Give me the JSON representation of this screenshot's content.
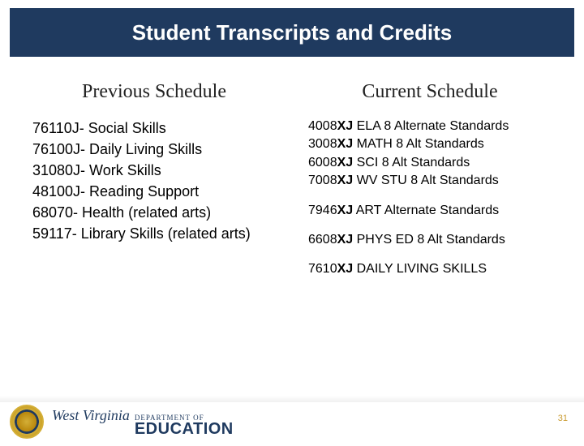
{
  "title": "Student Transcripts and Credits",
  "columns": {
    "previous": {
      "heading": "Previous Schedule",
      "items": [
        "76110J- Social Skills",
        "76100J- Daily Living Skills",
        "31080J- Work Skills",
        "48100J- Reading Support",
        "68070- Health (related arts)",
        "59117- Library Skills (related arts)"
      ]
    },
    "current": {
      "heading": "Current Schedule",
      "items": [
        {
          "code": "4008XJ",
          "label": "ELA 8 Alternate Standards"
        },
        {
          "code": "3008XJ",
          "label": "MATH 8 Alt Standards"
        },
        {
          "code": "6008XJ",
          "label": "SCI 8 Alt Standards"
        },
        {
          "code": "7008XJ",
          "label": "WV STU 8 Alt Standards"
        },
        {
          "code": "7946XJ",
          "label": "ART Alternate Standards",
          "gap": true
        },
        {
          "code": "6608XJ",
          "label": "PHYS ED 8 Alt Standards",
          "gap": true
        },
        {
          "code": "7610XJ",
          "label": "DAILY LIVING SKILLS",
          "gap": true
        }
      ]
    }
  },
  "footer": {
    "state": "West Virginia",
    "dept": "DEPARTMENT OF",
    "edu": "EDUCATION",
    "page": "31"
  },
  "colors": {
    "title_bg": "#1f3a5f",
    "title_fg": "#ffffff",
    "accent_gold": "#c99a2e"
  }
}
